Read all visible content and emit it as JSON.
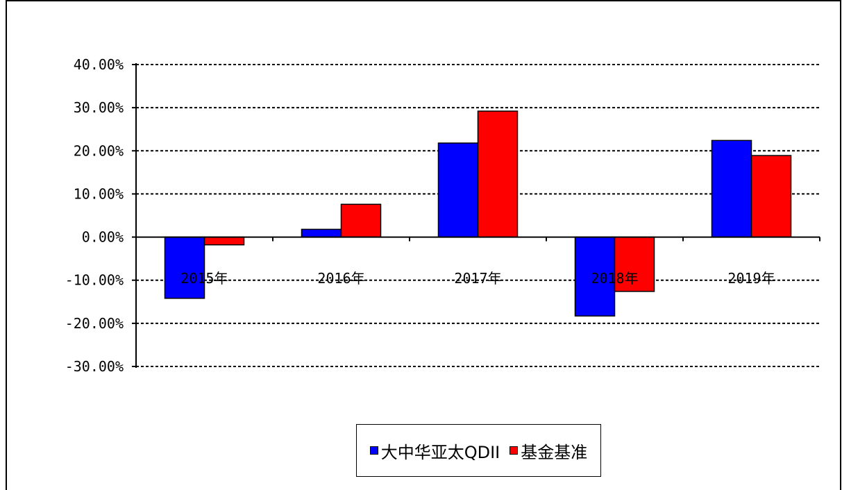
{
  "chart_data": {
    "type": "bar",
    "categories": [
      "2015年",
      "2016年",
      "2017年",
      "2018年",
      "2019年"
    ],
    "series": [
      {
        "name": "大中华亚太QDII",
        "values": [
          -14.2,
          1.8,
          21.8,
          -18.3,
          22.4
        ],
        "color": "#0000FF"
      },
      {
        "name": "基金基准",
        "values": [
          -1.8,
          7.6,
          29.2,
          -12.6,
          18.9
        ],
        "color": "#FF0000"
      }
    ],
    "y_ticks": [
      "40.00%",
      "30.00%",
      "20.00%",
      "10.00%",
      "0.00%",
      "-10.00%",
      "-20.00%",
      "-30.00%"
    ],
    "ylim": [
      -30,
      40
    ],
    "grid": true,
    "legend_position": "bottom"
  }
}
